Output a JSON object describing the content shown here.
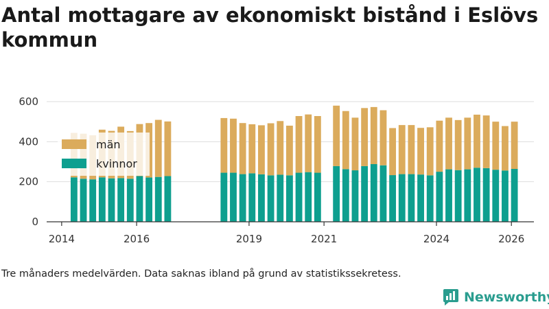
{
  "header": {
    "title": "Antal mottagare av ekonomiskt bistånd i Eslövs kommun"
  },
  "footer": {
    "note": "Tre månaders medelvärden. Data saknas ibland på grund av statistikssekretess.",
    "brand": "Newsworthy"
  },
  "colors": {
    "men": "#dbab5c",
    "women": "#0e9f8f",
    "grid": "#dddddd",
    "brand": "#2a9d8f"
  },
  "chart_data": {
    "type": "bar",
    "stacked": true,
    "title": "Antal mottagare av ekonomiskt bistånd i Eslövs kommun",
    "xlabel": "",
    "ylabel": "",
    "ylim": [
      0,
      600
    ],
    "xlim": [
      2013.6,
      2026.6
    ],
    "yticks": [
      0,
      200,
      400,
      600
    ],
    "ytick_labels": [
      "0",
      "200",
      "400",
      "600"
    ],
    "xticks": [
      2014,
      2016,
      2019,
      2021,
      2024,
      2026
    ],
    "xtick_labels": [
      "2014",
      "2016",
      "2019",
      "2021",
      "2024",
      "2026"
    ],
    "bar_width_years": 0.18,
    "grid": true,
    "legend": [
      "män",
      "kvinnor"
    ],
    "legend_position": "top-left",
    "x": [
      2014.33,
      2014.58,
      2014.83,
      2015.08,
      2015.33,
      2015.58,
      2015.83,
      2016.08,
      2016.33,
      2016.58,
      2016.83,
      2018.33,
      2018.58,
      2018.83,
      2019.08,
      2019.33,
      2019.58,
      2019.83,
      2020.08,
      2020.33,
      2020.58,
      2020.83,
      2021.33,
      2021.58,
      2021.83,
      2022.08,
      2022.33,
      2022.58,
      2022.83,
      2023.08,
      2023.33,
      2023.58,
      2023.83,
      2024.08,
      2024.33,
      2024.58,
      2024.83,
      2025.08,
      2025.33,
      2025.58,
      2025.83,
      2026.08
    ],
    "series": [
      {
        "name": "kvinnor",
        "values": [
          222,
          215,
          212,
          222,
          217,
          218,
          215,
          228,
          221,
          224,
          228,
          245,
          245,
          238,
          242,
          237,
          232,
          235,
          232,
          245,
          248,
          245,
          278,
          263,
          257,
          278,
          288,
          282,
          233,
          238,
          238,
          236,
          232,
          250,
          262,
          258,
          262,
          270,
          268,
          260,
          256,
          264
        ]
      },
      {
        "name": "män",
        "values": [
          222,
          225,
          220,
          238,
          237,
          257,
          238,
          260,
          272,
          285,
          273,
          273,
          270,
          255,
          245,
          245,
          260,
          268,
          248,
          283,
          288,
          283,
          302,
          290,
          263,
          290,
          285,
          275,
          235,
          245,
          245,
          233,
          240,
          255,
          258,
          250,
          258,
          265,
          263,
          240,
          222,
          236
        ]
      }
    ],
    "totals": [
      444,
      440,
      432,
      460,
      454,
      475,
      453,
      488,
      493,
      509,
      501,
      518,
      515,
      493,
      487,
      482,
      492,
      503,
      480,
      528,
      536,
      528,
      580,
      553,
      520,
      568,
      573,
      557,
      468,
      483,
      483,
      469,
      472,
      505,
      520,
      508,
      520,
      535,
      531,
      500,
      478,
      500
    ]
  }
}
